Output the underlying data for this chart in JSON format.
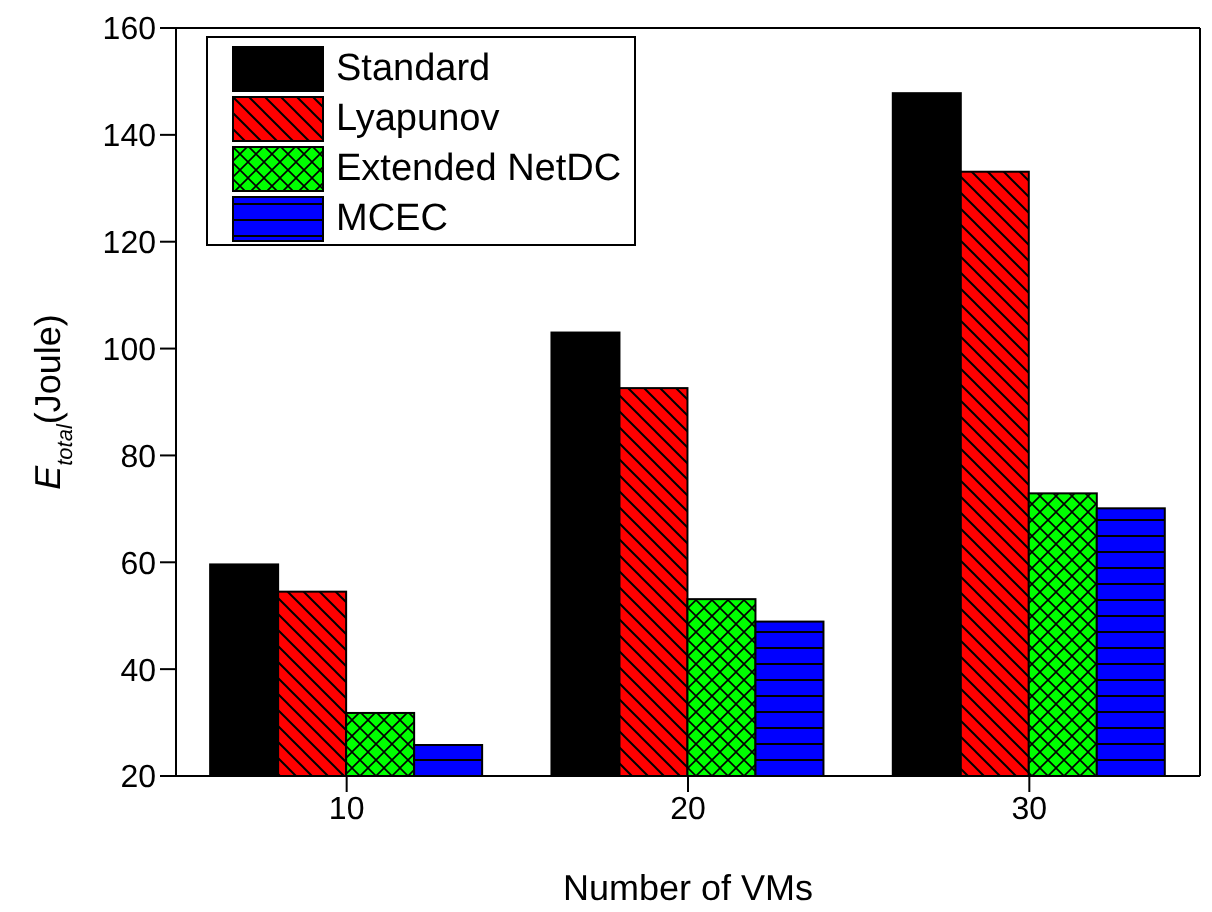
{
  "chart_data": {
    "type": "bar",
    "xlabel": "Number of VMs",
    "ylabel": "E$_{total}$(Joule)",
    "categories": [
      "10",
      "20",
      "30"
    ],
    "series": [
      {
        "name": "Standard",
        "color": "#000000",
        "values": [
          59.6,
          103,
          147.8
        ]
      },
      {
        "name": "Lyapunov",
        "color": "#ff0000",
        "values": [
          54.5,
          92.6,
          133.1
        ]
      },
      {
        "name": "Extended NetDC",
        "color": "#00ff00",
        "values": [
          31.8,
          53.1,
          72.9
        ]
      },
      {
        "name": "MCEC",
        "color": "#0000ff",
        "values": [
          25.8,
          48.9,
          70.1
        ]
      }
    ],
    "ylim": [
      20,
      160
    ],
    "yticks": [
      20,
      40,
      60,
      80,
      100,
      120,
      140,
      160
    ],
    "grid": false,
    "legend": "top left"
  }
}
